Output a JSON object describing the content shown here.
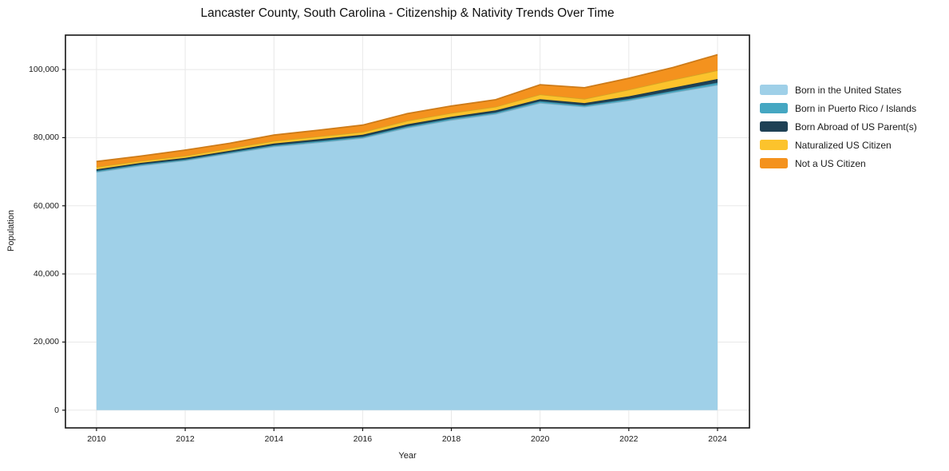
{
  "chart_data": {
    "type": "area",
    "stacked": true,
    "title": "Lancaster County, South Carolina - Citizenship & Nativity Trends Over Time",
    "xlabel": "Year",
    "ylabel": "Population",
    "x": [
      2010,
      2011,
      2012,
      2013,
      2014,
      2015,
      2016,
      2017,
      2018,
      2019,
      2020,
      2021,
      2022,
      2023,
      2024
    ],
    "series": [
      {
        "name": "Born in the United States",
        "color": "#9fd0e8",
        "values": [
          69900,
          71800,
          73300,
          75400,
          77400,
          78600,
          79900,
          82900,
          85200,
          87000,
          90200,
          89100,
          90900,
          93300,
          95500
        ]
      },
      {
        "name": "Born in Puerto Rico / Islands",
        "color": "#45a7c2",
        "values": [
          350,
          350,
          300,
          300,
          350,
          400,
          400,
          400,
          400,
          400,
          500,
          400,
          450,
          450,
          650
        ]
      },
      {
        "name": "Born Abroad of US Parent(s)",
        "color": "#1f4155",
        "values": [
          450,
          450,
          450,
          450,
          550,
          550,
          550,
          600,
          550,
          600,
          600,
          650,
          800,
          950,
          1050
        ]
      },
      {
        "name": "Naturalized US Citizen",
        "color": "#fcc32c",
        "values": [
          700,
          600,
          650,
          750,
          750,
          800,
          850,
          1050,
          1100,
          1100,
          1400,
          1250,
          1950,
          2350,
          2600
        ]
      },
      {
        "name": "Not a US Citizen",
        "color": "#f4921e",
        "values": [
          1600,
          1400,
          1650,
          1450,
          1700,
          1850,
          2000,
          2100,
          2050,
          2050,
          2850,
          3250,
          3350,
          3550,
          4550
        ]
      }
    ],
    "xlim": [
      2009.3,
      2024.72
    ],
    "ylim": [
      -5200,
      110100
    ],
    "xticks": {
      "values": [
        2010,
        2012,
        2014,
        2016,
        2018,
        2020,
        2022,
        2024
      ],
      "labels": [
        "2010",
        "2012",
        "2014",
        "2016",
        "2018",
        "2020",
        "2022",
        "2024"
      ]
    },
    "yticks": {
      "values": [
        0,
        20000,
        40000,
        60000,
        80000,
        100000
      ],
      "labels": [
        "0",
        "20,000",
        "40,000",
        "60,000",
        "80,000",
        "100,000"
      ]
    },
    "grid": true,
    "grid_color": "#e8e8e8",
    "frame_color": "#151515",
    "legend_position": "right"
  }
}
